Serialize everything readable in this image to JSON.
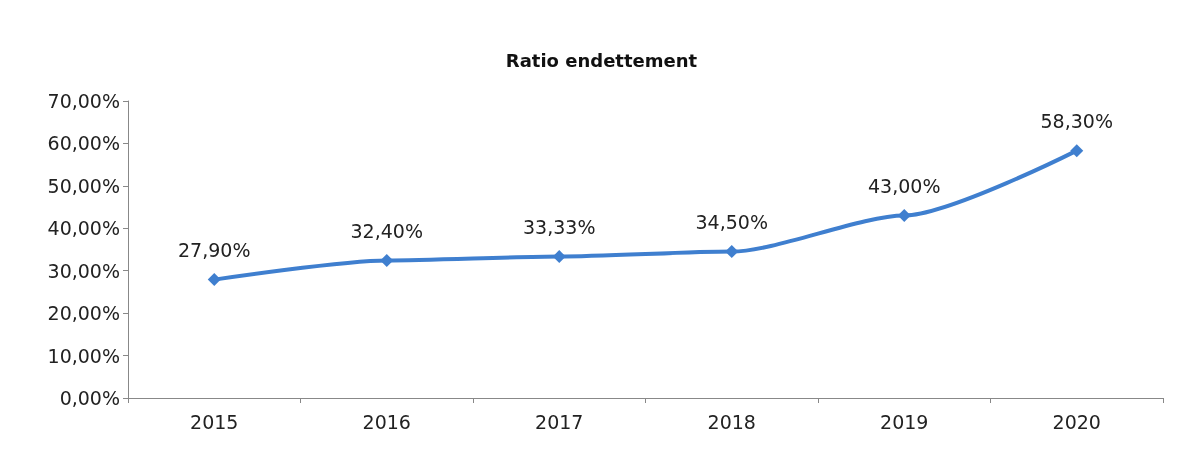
{
  "chart_data": {
    "type": "line",
    "title": "Ratio endettement",
    "categories": [
      "2015",
      "2016",
      "2017",
      "2018",
      "2019",
      "2020"
    ],
    "series": [
      {
        "color": "#3f7fcf",
        "values": [
          27.9,
          32.4,
          33.33,
          34.5,
          43.0,
          58.3
        ],
        "value_labels": [
          "27,90%",
          "32,40%",
          "33,33%",
          "34,50%",
          "43,00%",
          "58,30%"
        ]
      }
    ],
    "ylim": [
      0,
      70
    ],
    "yticks": [
      {
        "value": 0,
        "label": "0,00%"
      },
      {
        "value": 10,
        "label": "10,00%"
      },
      {
        "value": 20,
        "label": "20,00%"
      },
      {
        "value": 30,
        "label": "30,00%"
      },
      {
        "value": 40,
        "label": "40,00%"
      },
      {
        "value": 50,
        "label": "50,00%"
      },
      {
        "value": 60,
        "label": "60,00%"
      },
      {
        "value": 70,
        "label": "70,00%"
      }
    ],
    "grid": false,
    "marker": "diamond",
    "line_style": "solid"
  }
}
